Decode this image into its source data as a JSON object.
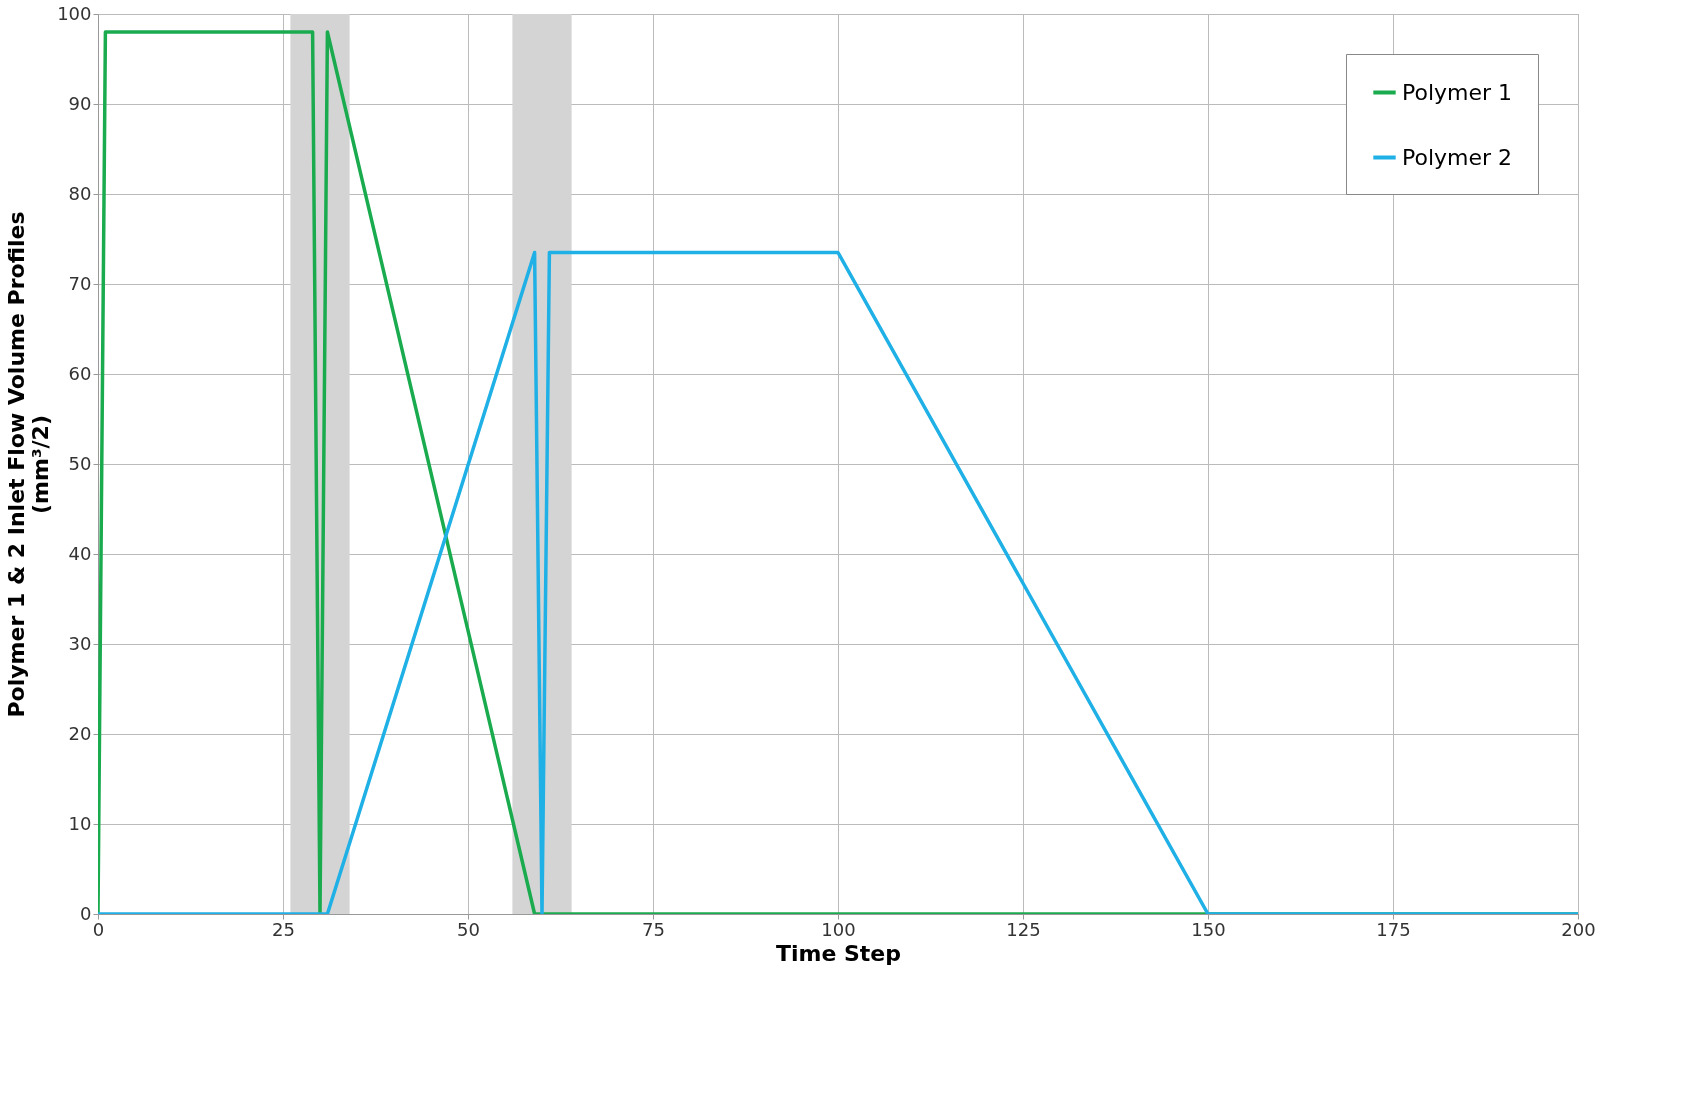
{
  "chart_data": {
    "type": "line",
    "xlabel": "Time Step",
    "ylabel": "Polymer 1 & 2 Inlet Flow Volume Profiles\n(mm³/2)",
    "series": [
      {
        "name": "Polymer 1",
        "color": "#1aab4f",
        "x": [
          0,
          1,
          29,
          30,
          31,
          59,
          200
        ],
        "values": [
          0,
          98,
          98,
          0,
          98,
          0,
          0
        ]
      },
      {
        "name": "Polymer 2",
        "color": "#1fb0e6",
        "x": [
          0,
          31,
          59,
          60,
          61,
          100,
          150,
          200
        ],
        "values": [
          0,
          0,
          73.5,
          0,
          73.5,
          73.5,
          0,
          0
        ]
      }
    ],
    "bands": [
      {
        "axis": "x",
        "from": 26,
        "to": 34,
        "color": "#d4d4d4"
      },
      {
        "axis": "x",
        "from": 56,
        "to": 64,
        "color": "#d4d4d4"
      }
    ],
    "xlim": [
      0,
      200
    ],
    "xticks": [
      0,
      25,
      50,
      75,
      100,
      125,
      150,
      175,
      200
    ],
    "ylim": [
      0,
      100
    ],
    "yticks": [
      0,
      10,
      20,
      30,
      40,
      50,
      60,
      70,
      80,
      90,
      100
    ],
    "grid": true,
    "legend": "top right",
    "marker": "none",
    "line_style": "solid"
  }
}
